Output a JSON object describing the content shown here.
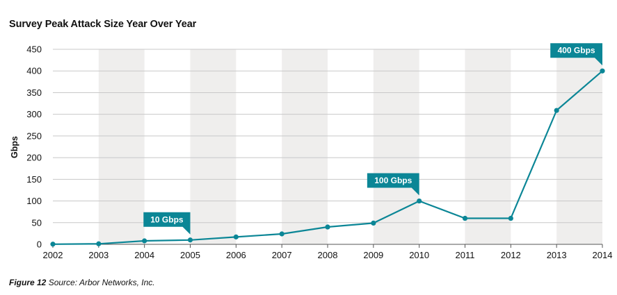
{
  "chart_data": {
    "type": "line",
    "title": "Survey Peak Attack Size Year Over Year",
    "ylabel": "Gbps",
    "xlabel": "",
    "ylim": [
      0,
      450
    ],
    "yticks": [
      0,
      50,
      100,
      150,
      200,
      250,
      300,
      350,
      400,
      450
    ],
    "x": [
      "2002",
      "2003",
      "2004",
      "2005",
      "2006",
      "2007",
      "2008",
      "2009",
      "2010",
      "2011",
      "2012",
      "2013",
      "2014"
    ],
    "values": [
      0.4,
      1.2,
      8,
      10,
      17,
      24,
      40,
      49,
      100,
      60,
      60,
      309,
      400
    ],
    "grid": true,
    "color": "#0b8696",
    "band_color": "#efeeed",
    "annotations": [
      {
        "year": "2005",
        "text": "10 Gbps"
      },
      {
        "year": "2010",
        "text": "100 Gbps"
      },
      {
        "year": "2014",
        "text": "400 Gbps"
      }
    ]
  },
  "caption": {
    "label": "Figure 12",
    "text": " Source: Arbor Networks, Inc."
  }
}
